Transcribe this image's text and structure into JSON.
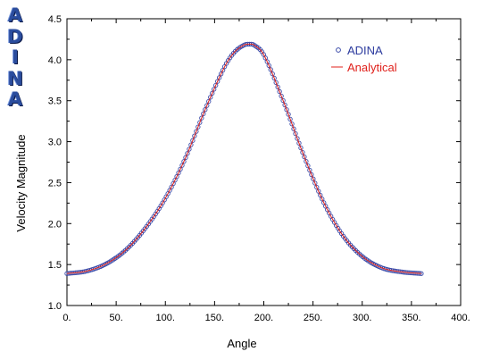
{
  "logo": {
    "letters": [
      "A",
      "D",
      "I",
      "N",
      "A"
    ]
  },
  "chart_data": {
    "type": "line",
    "xlabel": "Angle",
    "ylabel": "Velocity Magnitude",
    "xlim": [
      0,
      400
    ],
    "ylim": [
      1.0,
      4.5
    ],
    "xticks": [
      0,
      50,
      100,
      150,
      200,
      250,
      300,
      350,
      400
    ],
    "xtick_labels": [
      "0.",
      "50.",
      "100.",
      "150.",
      "200.",
      "250.",
      "300.",
      "350.",
      "400."
    ],
    "yticks": [
      1.0,
      1.5,
      2.0,
      2.5,
      3.0,
      3.5,
      4.0,
      4.5
    ],
    "ytick_labels": [
      "1.0",
      "1.5",
      "2.0",
      "2.5",
      "3.0",
      "3.5",
      "4.0",
      "4.5"
    ],
    "grid": false,
    "legend_position": "top-right",
    "series": [
      {
        "name": "ADINA",
        "style": "markers",
        "color": "#3a4aa8",
        "x": [
          0,
          20,
          40,
          60,
          80,
          100,
          120,
          140,
          160,
          170,
          180,
          185,
          190,
          200,
          220,
          240,
          260,
          280,
          300,
          320,
          340,
          360
        ],
        "y": [
          1.39,
          1.42,
          1.51,
          1.68,
          1.95,
          2.31,
          2.79,
          3.38,
          3.91,
          4.09,
          4.18,
          4.19,
          4.18,
          4.06,
          3.49,
          2.85,
          2.28,
          1.86,
          1.6,
          1.46,
          1.41,
          1.39
        ]
      },
      {
        "name": "Analytical",
        "style": "line",
        "color": "#e0201b",
        "x": [
          0,
          20,
          40,
          60,
          80,
          100,
          120,
          140,
          160,
          170,
          180,
          185,
          190,
          200,
          220,
          240,
          260,
          280,
          300,
          320,
          340,
          360
        ],
        "y": [
          1.39,
          1.42,
          1.51,
          1.68,
          1.95,
          2.31,
          2.79,
          3.38,
          3.91,
          4.09,
          4.18,
          4.19,
          4.18,
          4.06,
          3.49,
          2.85,
          2.28,
          1.86,
          1.6,
          1.46,
          1.41,
          1.39
        ]
      }
    ]
  }
}
